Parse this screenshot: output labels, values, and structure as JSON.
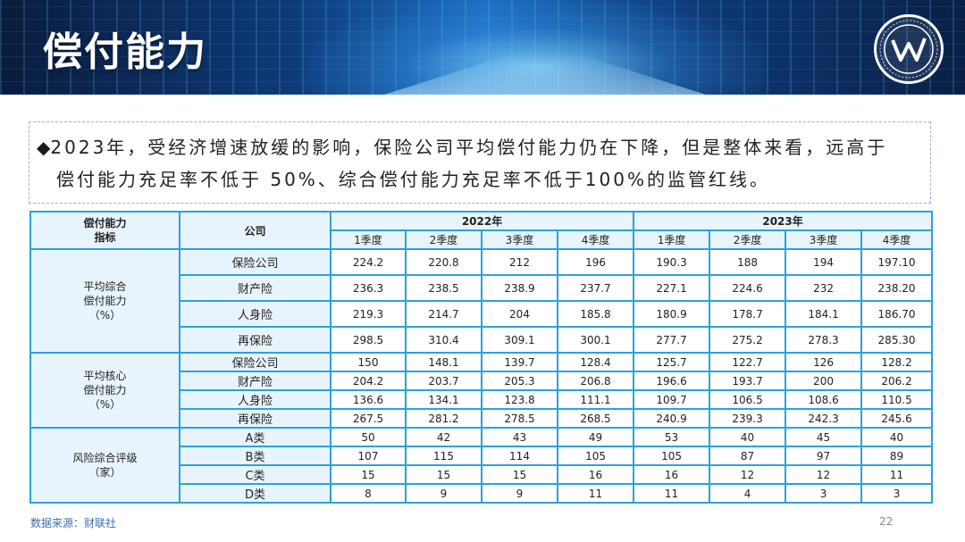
{
  "header": {
    "title": "偿付能力",
    "accent_color": "#0d3a78"
  },
  "summary": {
    "bullet": "◆",
    "line1": "2023年，受经济增速放缓的影响，保险公司平均偿付能力仍在下降，但是整体来看，远高于",
    "line2": "偿付能力充足率不低于 50%、综合偿付能力充足率不低于100%的监管红线。"
  },
  "table": {
    "header": {
      "indicator": "偿付能力\n指标",
      "company": "公司",
      "year1": "2022年",
      "year2": "2023年",
      "quarters": [
        "1季度",
        "2季度",
        "3季度",
        "4季度"
      ]
    },
    "groups": [
      {
        "label": "平均综合\n偿付能力\n（%）",
        "rows": [
          {
            "company": "保险公司",
            "y2022": [
              "224.2",
              "220.8",
              "212",
              "196"
            ],
            "y2023": [
              "190.3",
              "188",
              "194",
              "197.10"
            ]
          },
          {
            "company": "财产险",
            "y2022": [
              "236.3",
              "238.5",
              "238.9",
              "237.7"
            ],
            "y2023": [
              "227.1",
              "224.6",
              "232",
              "238.20"
            ]
          },
          {
            "company": "人身险",
            "y2022": [
              "219.3",
              "214.7",
              "204",
              "185.8"
            ],
            "y2023": [
              "180.9",
              "178.7",
              "184.1",
              "186.70"
            ]
          },
          {
            "company": "再保险",
            "y2022": [
              "298.5",
              "310.4",
              "309.1",
              "300.1"
            ],
            "y2023": [
              "277.7",
              "275.2",
              "278.3",
              "285.30"
            ]
          }
        ]
      },
      {
        "label": "平均核心\n偿付能力\n（%）",
        "rows": [
          {
            "company": "保险公司",
            "y2022": [
              "150",
              "148.1",
              "139.7",
              "128.4"
            ],
            "y2023": [
              "125.7",
              "122.7",
              "126",
              "128.2"
            ]
          },
          {
            "company": "财产险",
            "y2022": [
              "204.2",
              "203.7",
              "205.3",
              "206.8"
            ],
            "y2023": [
              "196.6",
              "193.7",
              "200",
              "206.2"
            ]
          },
          {
            "company": "人身险",
            "y2022": [
              "136.6",
              "134.1",
              "123.8",
              "111.1"
            ],
            "y2023": [
              "109.7",
              "106.5",
              "108.6",
              "110.5"
            ]
          },
          {
            "company": "再保险",
            "y2022": [
              "267.5",
              "281.2",
              "278.5",
              "268.5"
            ],
            "y2023": [
              "240.9",
              "239.3",
              "242.3",
              "245.6"
            ]
          }
        ]
      },
      {
        "label": "风险综合评级\n（家）",
        "rows": [
          {
            "company": "A类",
            "y2022": [
              "50",
              "42",
              "43",
              "49"
            ],
            "y2023": [
              "53",
              "40",
              "45",
              "40"
            ]
          },
          {
            "company": "B类",
            "y2022": [
              "107",
              "115",
              "114",
              "105"
            ],
            "y2023": [
              "105",
              "87",
              "97",
              "89"
            ]
          },
          {
            "company": "C类",
            "y2022": [
              "15",
              "15",
              "15",
              "16"
            ],
            "y2023": [
              "16",
              "12",
              "12",
              "11"
            ]
          },
          {
            "company": "D类",
            "y2022": [
              "8",
              "9",
              "9",
              "11"
            ],
            "y2023": [
              "11",
              "4",
              "3",
              "3"
            ]
          }
        ]
      }
    ],
    "highlight_colors": {
      "increase": "#e23636",
      "normal_2023": "#2aa14a"
    }
  },
  "footer": {
    "source": "数据来源：财联社",
    "page_number": "22"
  }
}
